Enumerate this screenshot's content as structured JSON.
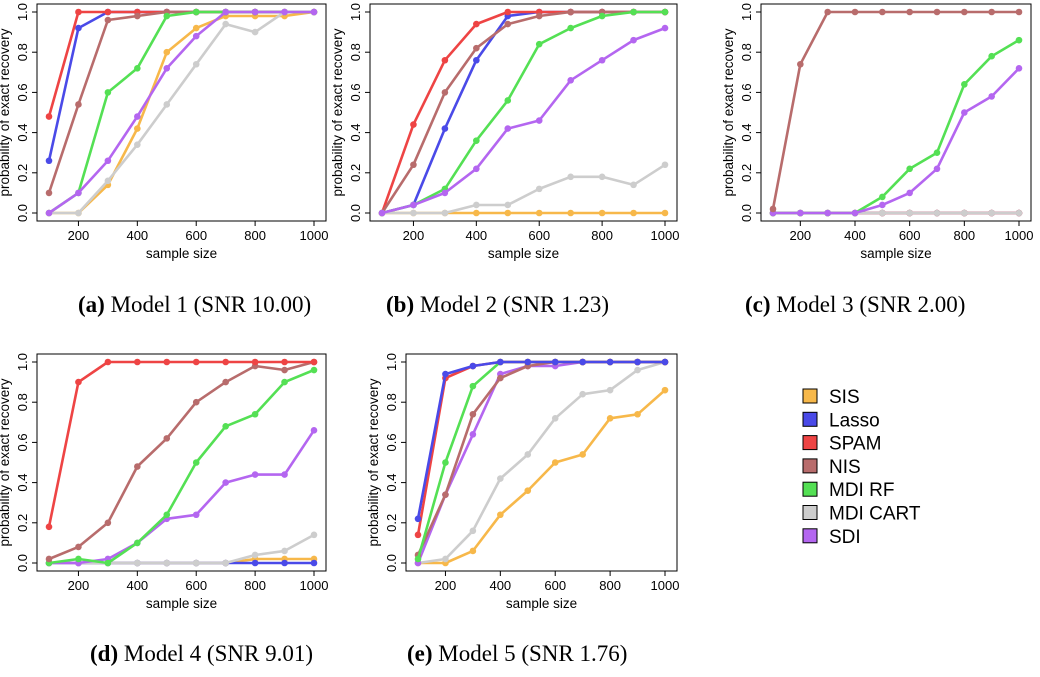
{
  "chart_data": [
    {
      "type": "line",
      "panel_label": "(a)",
      "caption": "Model 1 (SNR 10.00)",
      "xlabel": "sample size",
      "ylabel": "probability of exact recovery",
      "x": [
        100,
        200,
        300,
        400,
        500,
        600,
        700,
        800,
        900,
        1000
      ],
      "xticks": [
        200,
        400,
        600,
        800,
        1000
      ],
      "yticks": [
        0.0,
        0.2,
        0.4,
        0.6,
        0.8,
        1.0
      ],
      "xlim": [
        100,
        1000
      ],
      "ylim": [
        0,
        1
      ],
      "series": [
        {
          "name": "SIS",
          "values": [
            0,
            0,
            0.14,
            0.42,
            0.8,
            0.92,
            0.98,
            0.98,
            0.98,
            1.0
          ]
        },
        {
          "name": "Lasso",
          "values": [
            0.26,
            0.92,
            1.0,
            1.0,
            1.0,
            1.0,
            1.0,
            1.0,
            1.0,
            1.0
          ]
        },
        {
          "name": "SPAM",
          "values": [
            0.48,
            1.0,
            1.0,
            1.0,
            1.0,
            1.0,
            1.0,
            1.0,
            1.0,
            1.0
          ]
        },
        {
          "name": "NIS",
          "values": [
            0.1,
            0.54,
            0.96,
            0.98,
            1.0,
            1.0,
            1.0,
            1.0,
            1.0,
            1.0
          ]
        },
        {
          "name": "MDI RF",
          "values": [
            0,
            0.1,
            0.6,
            0.72,
            0.98,
            1.0,
            1.0,
            1.0,
            1.0,
            1.0
          ]
        },
        {
          "name": "MDI CART",
          "values": [
            0,
            0,
            0.16,
            0.34,
            0.54,
            0.74,
            0.94,
            0.9,
            1.0,
            1.0
          ]
        },
        {
          "name": "SDI",
          "values": [
            0,
            0.1,
            0.26,
            0.48,
            0.72,
            0.88,
            1.0,
            1.0,
            1.0,
            1.0
          ]
        }
      ]
    },
    {
      "type": "line",
      "panel_label": "(b)",
      "caption": "Model 2 (SNR 1.23)",
      "xlabel": "sample size",
      "ylabel": "probability of exact recovery",
      "x": [
        100,
        200,
        300,
        400,
        500,
        600,
        700,
        800,
        900,
        1000
      ],
      "xticks": [
        200,
        400,
        600,
        800,
        1000
      ],
      "yticks": [
        0.0,
        0.2,
        0.4,
        0.6,
        0.8,
        1.0
      ],
      "xlim": [
        100,
        1000
      ],
      "ylim": [
        0,
        1
      ],
      "series": [
        {
          "name": "SIS",
          "values": [
            0,
            0,
            0,
            0,
            0,
            0,
            0,
            0,
            0,
            0
          ]
        },
        {
          "name": "Lasso",
          "values": [
            0,
            0.04,
            0.42,
            0.76,
            0.98,
            1.0,
            1.0,
            1.0,
            1.0,
            1.0
          ]
        },
        {
          "name": "SPAM",
          "values": [
            0,
            0.44,
            0.76,
            0.94,
            1.0,
            1.0,
            1.0,
            1.0,
            1.0,
            1.0
          ]
        },
        {
          "name": "NIS",
          "values": [
            0,
            0.24,
            0.6,
            0.82,
            0.94,
            0.98,
            1.0,
            1.0,
            1.0,
            1.0
          ]
        },
        {
          "name": "MDI RF",
          "values": [
            0,
            0.04,
            0.12,
            0.36,
            0.56,
            0.84,
            0.92,
            0.98,
            1.0,
            1.0
          ]
        },
        {
          "name": "MDI CART",
          "values": [
            0,
            0,
            0,
            0.04,
            0.04,
            0.12,
            0.18,
            0.18,
            0.14,
            0.24
          ]
        },
        {
          "name": "SDI",
          "values": [
            0,
            0.04,
            0.1,
            0.22,
            0.42,
            0.46,
            0.66,
            0.76,
            0.86,
            0.92
          ]
        }
      ]
    },
    {
      "type": "line",
      "panel_label": "(c)",
      "caption": "Model 3 (SNR 2.00)",
      "xlabel": "sample size",
      "ylabel": "probability of exact recovery",
      "x": [
        100,
        200,
        300,
        400,
        500,
        600,
        700,
        800,
        900,
        1000
      ],
      "xticks": [
        200,
        400,
        600,
        800,
        1000
      ],
      "yticks": [
        0.0,
        0.2,
        0.4,
        0.6,
        0.8,
        1.0
      ],
      "xlim": [
        100,
        1000
      ],
      "ylim": [
        0,
        1
      ],
      "series": [
        {
          "name": "SIS",
          "values": [
            0,
            0,
            0,
            0,
            0,
            0,
            0,
            0,
            0,
            0
          ]
        },
        {
          "name": "Lasso",
          "values": [
            0,
            0,
            0,
            0,
            0,
            0,
            0,
            0,
            0,
            0
          ]
        },
        {
          "name": "SPAM",
          "values": [
            0,
            0,
            0,
            0,
            0,
            0,
            0,
            0,
            0,
            0
          ]
        },
        {
          "name": "MDI CART",
          "values": [
            0,
            0,
            0,
            0,
            0,
            0,
            0,
            0,
            0,
            0
          ]
        },
        {
          "name": "MDI RF",
          "values": [
            0,
            0,
            0,
            0,
            0.08,
            0.22,
            0.3,
            0.64,
            0.78,
            0.86
          ]
        },
        {
          "name": "SDI",
          "values": [
            0,
            0,
            0,
            0,
            0.04,
            0.1,
            0.22,
            0.5,
            0.58,
            0.72
          ]
        },
        {
          "name": "NIS",
          "values": [
            0.02,
            0.74,
            1.0,
            1.0,
            1.0,
            1.0,
            1.0,
            1.0,
            1.0,
            1.0
          ]
        }
      ]
    },
    {
      "type": "line",
      "panel_label": "(d)",
      "caption": "Model 4 (SNR 9.01)",
      "xlabel": "sample size",
      "ylabel": "probability of exact recovery",
      "x": [
        100,
        200,
        300,
        400,
        500,
        600,
        700,
        800,
        900,
        1000
      ],
      "xticks": [
        200,
        400,
        600,
        800,
        1000
      ],
      "yticks": [
        0.0,
        0.2,
        0.4,
        0.6,
        0.8,
        1.0
      ],
      "xlim": [
        100,
        1000
      ],
      "ylim": [
        0,
        1
      ],
      "series": [
        {
          "name": "SIS",
          "values": [
            0,
            0,
            0,
            0,
            0,
            0,
            0,
            0.02,
            0.02,
            0.02
          ]
        },
        {
          "name": "Lasso",
          "values": [
            0,
            0,
            0,
            0,
            0,
            0,
            0,
            0,
            0,
            0
          ]
        },
        {
          "name": "MDI CART",
          "values": [
            0,
            0,
            0,
            0,
            0,
            0,
            0,
            0.04,
            0.06,
            0.14
          ]
        },
        {
          "name": "SDI",
          "values": [
            0,
            0,
            0.02,
            0.1,
            0.22,
            0.24,
            0.4,
            0.44,
            0.44,
            0.66
          ]
        },
        {
          "name": "MDI RF",
          "values": [
            0,
            0.02,
            0,
            0.1,
            0.24,
            0.5,
            0.68,
            0.74,
            0.9,
            0.96
          ]
        },
        {
          "name": "NIS",
          "values": [
            0.02,
            0.08,
            0.2,
            0.48,
            0.62,
            0.8,
            0.9,
            0.98,
            0.96,
            1.0
          ]
        },
        {
          "name": "SPAM",
          "values": [
            0.18,
            0.9,
            1.0,
            1.0,
            1.0,
            1.0,
            1.0,
            1.0,
            1.0,
            1.0
          ]
        }
      ]
    },
    {
      "type": "line",
      "panel_label": "(e)",
      "caption": "Model 5 (SNR 1.76)",
      "xlabel": "sample size",
      "ylabel": "probability of exact recovery",
      "x": [
        100,
        200,
        300,
        400,
        500,
        600,
        700,
        800,
        900,
        1000
      ],
      "xticks": [
        200,
        400,
        600,
        800,
        1000
      ],
      "yticks": [
        0.0,
        0.2,
        0.4,
        0.6,
        0.8,
        1.0
      ],
      "xlim": [
        100,
        1000
      ],
      "ylim": [
        0,
        1
      ],
      "series": [
        {
          "name": "SIS",
          "values": [
            0,
            0,
            0.06,
            0.24,
            0.36,
            0.5,
            0.54,
            0.72,
            0.74,
            0.86
          ]
        },
        {
          "name": "MDI CART",
          "values": [
            0,
            0.02,
            0.16,
            0.42,
            0.54,
            0.72,
            0.84,
            0.86,
            0.96,
            1.0
          ]
        },
        {
          "name": "SDI",
          "values": [
            0,
            0.34,
            0.64,
            0.94,
            0.98,
            0.98,
            1.0,
            1.0,
            1.0,
            1.0
          ]
        },
        {
          "name": "NIS",
          "values": [
            0.04,
            0.34,
            0.74,
            0.92,
            0.98,
            1.0,
            1.0,
            1.0,
            1.0,
            1.0
          ]
        },
        {
          "name": "MDI RF",
          "values": [
            0.02,
            0.5,
            0.88,
            1.0,
            1.0,
            1.0,
            1.0,
            1.0,
            1.0,
            1.0
          ]
        },
        {
          "name": "SPAM",
          "values": [
            0.14,
            0.92,
            0.98,
            1.0,
            1.0,
            1.0,
            1.0,
            1.0,
            1.0,
            1.0
          ]
        },
        {
          "name": "Lasso",
          "values": [
            0.22,
            0.94,
            0.98,
            1.0,
            1.0,
            1.0,
            1.0,
            1.0,
            1.0,
            1.0
          ]
        }
      ]
    }
  ],
  "legend": {
    "placement": "bottom-right",
    "items": [
      {
        "name": "SIS",
        "color": "#f7b84a"
      },
      {
        "name": "Lasso",
        "color": "#4a4ae8"
      },
      {
        "name": "SPAM",
        "color": "#ee4444"
      },
      {
        "name": "NIS",
        "color": "#b86c6c"
      },
      {
        "name": "MDI RF",
        "color": "#54e054"
      },
      {
        "name": "MDI CART",
        "color": "#cdcdcd"
      },
      {
        "name": "SDI",
        "color": "#b466f0"
      }
    ]
  }
}
